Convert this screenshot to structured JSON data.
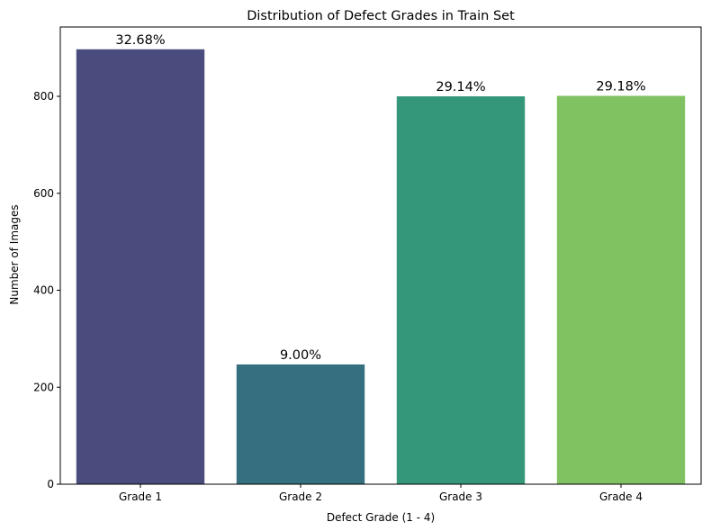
{
  "chart_data": {
    "type": "bar",
    "title": "Distribution of Defect Grades in Train Set",
    "xlabel": "Defect Grade (1 - 4)",
    "ylabel": "Number of Images",
    "categories": [
      "Grade 1",
      "Grade 2",
      "Grade 3",
      "Grade 4"
    ],
    "values": [
      897,
      247,
      800,
      801
    ],
    "data_labels": [
      "32.68%",
      "9.00%",
      "29.14%",
      "29.18%"
    ],
    "colors": [
      "#4a4c7e",
      "#367080",
      "#35977a",
      "#80c262"
    ],
    "ylim": [
      0,
      943
    ],
    "yticks": [
      0,
      200,
      400,
      600,
      800
    ],
    "grid": false,
    "legend": "none"
  }
}
